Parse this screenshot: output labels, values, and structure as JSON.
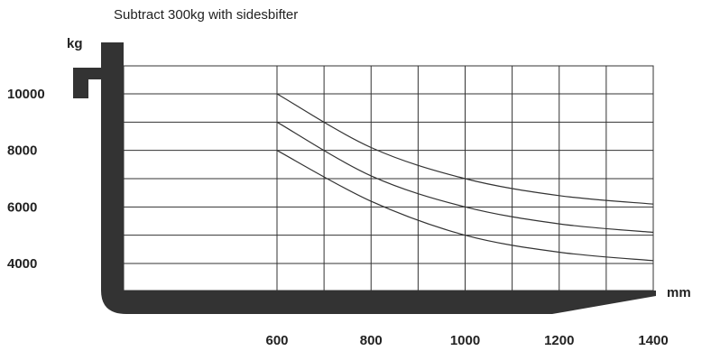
{
  "chart_data": {
    "type": "line",
    "note": "Subtract 300kg with sidesbifter",
    "ylabel": "kg",
    "xlabel": "mm",
    "y_ticks": [
      4000,
      6000,
      8000,
      10000
    ],
    "x_ticks": [
      600,
      800,
      1000,
      1200,
      1400
    ],
    "xlim": [
      0,
      1400
    ],
    "ylim": [
      3000,
      11000
    ],
    "grid": true,
    "x": [
      600,
      800,
      1000,
      1200,
      1400
    ],
    "series": [
      {
        "values": [
          10000,
          8100,
          7000,
          6400,
          6100
        ]
      },
      {
        "values": [
          9000,
          7100,
          6000,
          5400,
          5100
        ]
      },
      {
        "values": [
          8000,
          6200,
          5000,
          4400,
          4100
        ]
      }
    ]
  }
}
